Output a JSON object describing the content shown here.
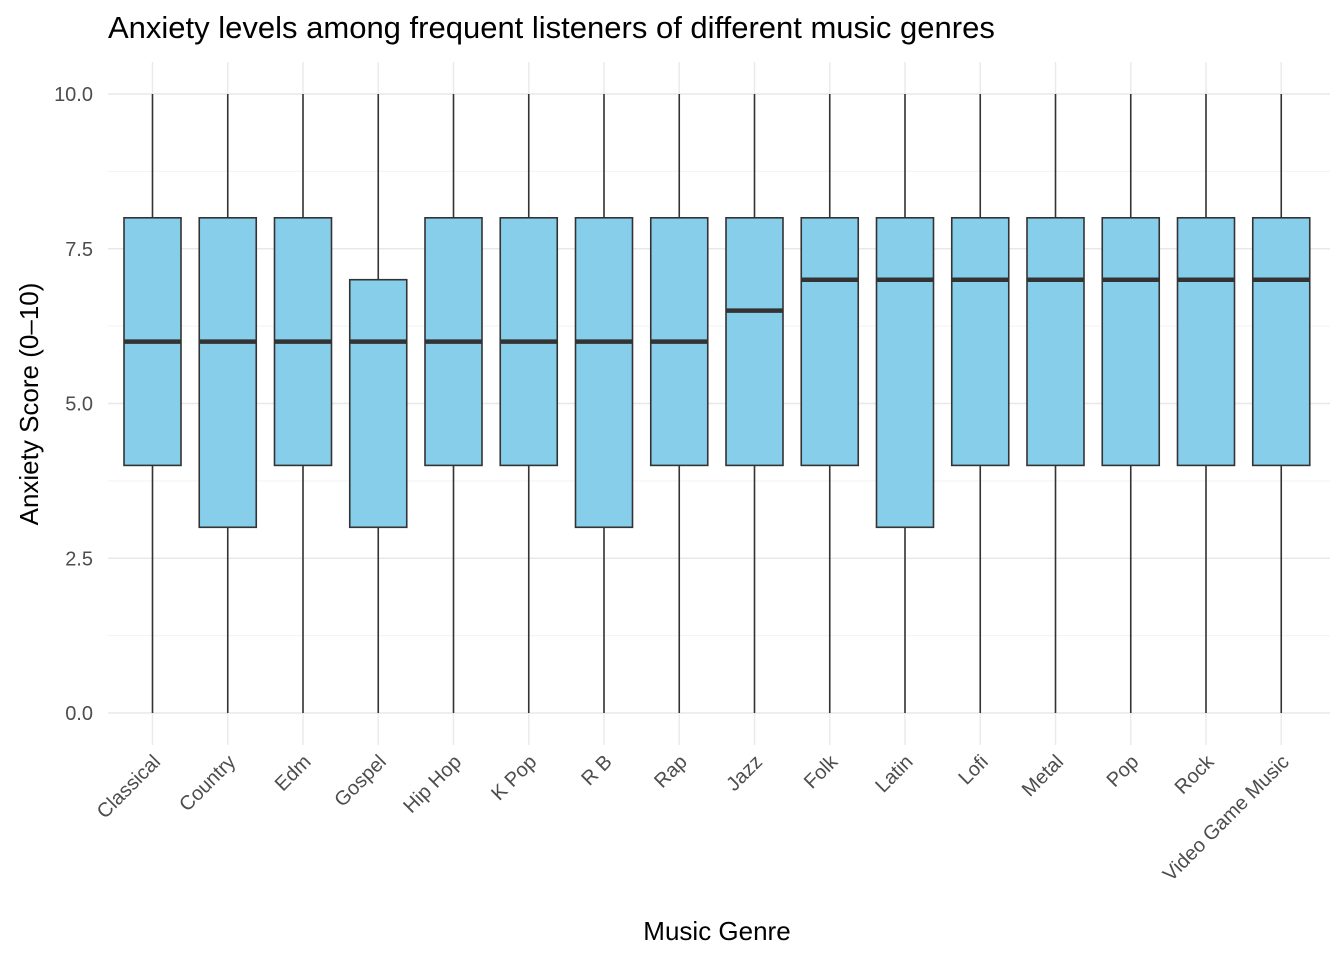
{
  "chart_data": {
    "type": "boxplot",
    "title": "Anxiety levels among frequent listeners of different music genres",
    "xlabel": "Music Genre",
    "ylabel": "Anxiety Score (0–10)",
    "ylim": [
      0,
      10
    ],
    "yticks": [
      "0.0",
      "2.5",
      "5.0",
      "7.5",
      "10.0"
    ],
    "categories": [
      "Classical",
      "Country",
      "Edm",
      "Gospel",
      "Hip Hop",
      "K Pop",
      "R B",
      "Rap",
      "Jazz",
      "Folk",
      "Latin",
      "Lofi",
      "Metal",
      "Pop",
      "Rock",
      "Video Game Music"
    ],
    "boxes": [
      {
        "min": 0,
        "q1": 4,
        "median": 6,
        "q3": 8,
        "max": 10
      },
      {
        "min": 0,
        "q1": 3,
        "median": 6,
        "q3": 8,
        "max": 10
      },
      {
        "min": 0,
        "q1": 4,
        "median": 6,
        "q3": 8,
        "max": 10
      },
      {
        "min": 0,
        "q1": 3,
        "median": 6,
        "q3": 7,
        "max": 10
      },
      {
        "min": 0,
        "q1": 4,
        "median": 6,
        "q3": 8,
        "max": 10
      },
      {
        "min": 0,
        "q1": 4,
        "median": 6,
        "q3": 8,
        "max": 10
      },
      {
        "min": 0,
        "q1": 3,
        "median": 6,
        "q3": 8,
        "max": 10
      },
      {
        "min": 0,
        "q1": 4,
        "median": 6,
        "q3": 8,
        "max": 10
      },
      {
        "min": 0,
        "q1": 4,
        "median": 6.5,
        "q3": 8,
        "max": 10
      },
      {
        "min": 0,
        "q1": 4,
        "median": 7,
        "q3": 8,
        "max": 10
      },
      {
        "min": 0,
        "q1": 3,
        "median": 7,
        "q3": 8,
        "max": 10
      },
      {
        "min": 0,
        "q1": 4,
        "median": 7,
        "q3": 8,
        "max": 10
      },
      {
        "min": 0,
        "q1": 4,
        "median": 7,
        "q3": 8,
        "max": 10
      },
      {
        "min": 0,
        "q1": 4,
        "median": 7,
        "q3": 8,
        "max": 10
      },
      {
        "min": 0,
        "q1": 4,
        "median": 7,
        "q3": 8,
        "max": 10
      },
      {
        "min": 0,
        "q1": 4,
        "median": 7,
        "q3": 8,
        "max": 10
      }
    ],
    "fill_color": "#87CEEB",
    "line_color": "#333333",
    "grid": true,
    "legend": "none"
  }
}
